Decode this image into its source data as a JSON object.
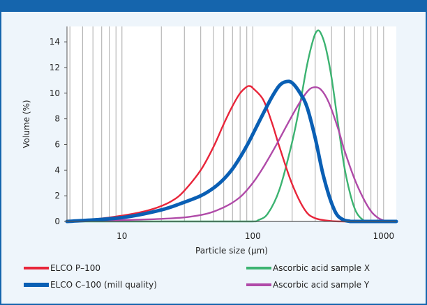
{
  "chart_data": {
    "type": "line",
    "title": "",
    "xlabel": "Particle size (µm)",
    "ylabel": "Volume (%)",
    "xscale": "log",
    "xlim": [
      3.8,
      1250
    ],
    "ylim": [
      0,
      15.2
    ],
    "x_ticks": [
      10,
      100,
      1000
    ],
    "x_tick_labels": [
      "10",
      "100",
      "1000"
    ],
    "y_ticks": [
      0,
      2,
      4,
      6,
      8,
      10,
      12,
      14
    ],
    "y_tick_labels": [
      "0",
      "2",
      "4",
      "6",
      "8",
      "10",
      "12",
      "14"
    ],
    "grid": "vertical",
    "legend_position": "bottom",
    "series": [
      {
        "name": "ELCO P–100",
        "color": "#e8253a",
        "style": "thin",
        "x": [
          3.8,
          6,
          10,
          15,
          20,
          25,
          30,
          40,
          50,
          60,
          70,
          80,
          90,
          95,
          100,
          120,
          140,
          160,
          200,
          250,
          300,
          400,
          500,
          600
        ],
        "y": [
          0,
          0.15,
          0.45,
          0.8,
          1.2,
          1.7,
          2.4,
          4.0,
          5.8,
          7.6,
          9.0,
          10.0,
          10.5,
          10.55,
          10.4,
          9.5,
          7.7,
          5.8,
          2.9,
          0.9,
          0.25,
          0.03,
          0,
          0
        ]
      },
      {
        "name": "Ascorbic acid sample X",
        "color": "#3cb371",
        "style": "thin",
        "x": [
          3.8,
          60,
          100,
          110,
          130,
          160,
          200,
          230,
          260,
          290,
          310,
          330,
          360,
          400,
          450,
          500,
          560,
          620,
          700,
          780,
          1250
        ],
        "y": [
          0,
          0,
          0,
          0.1,
          0.6,
          2.5,
          6.2,
          9.2,
          12.2,
          14.2,
          14.85,
          14.7,
          13.6,
          11.2,
          7.5,
          4.3,
          2.0,
          0.7,
          0.1,
          0,
          0
        ]
      },
      {
        "name": "ELCO C–100 (mill quality)",
        "color": "#0a5fb4",
        "style": "thick",
        "x": [
          3.8,
          10,
          20,
          30,
          40,
          50,
          60,
          70,
          80,
          90,
          100,
          120,
          140,
          160,
          180,
          200,
          230,
          260,
          300,
          340,
          380,
          420,
          450,
          500,
          550,
          600,
          1250
        ],
        "y": [
          0,
          0.3,
          0.9,
          1.5,
          2.0,
          2.6,
          3.3,
          4.1,
          5.0,
          5.9,
          6.8,
          8.4,
          9.7,
          10.6,
          10.9,
          10.8,
          10.0,
          8.9,
          6.5,
          3.9,
          2.1,
          0.9,
          0.4,
          0.1,
          0.02,
          0,
          0
        ]
      },
      {
        "name": "Ascorbic acid sample Y",
        "color": "#b04aa8",
        "style": "thin",
        "x": [
          3.8,
          20,
          40,
          60,
          80,
          100,
          120,
          150,
          180,
          220,
          260,
          290,
          330,
          380,
          450,
          500,
          600,
          700,
          800,
          900,
          1000,
          1100
        ],
        "y": [
          0,
          0.2,
          0.5,
          1.1,
          1.9,
          3.0,
          4.2,
          5.9,
          7.4,
          9.0,
          10.1,
          10.45,
          10.3,
          9.3,
          7.2,
          5.6,
          3.3,
          1.8,
          0.8,
          0.3,
          0.08,
          0
        ]
      }
    ]
  }
}
